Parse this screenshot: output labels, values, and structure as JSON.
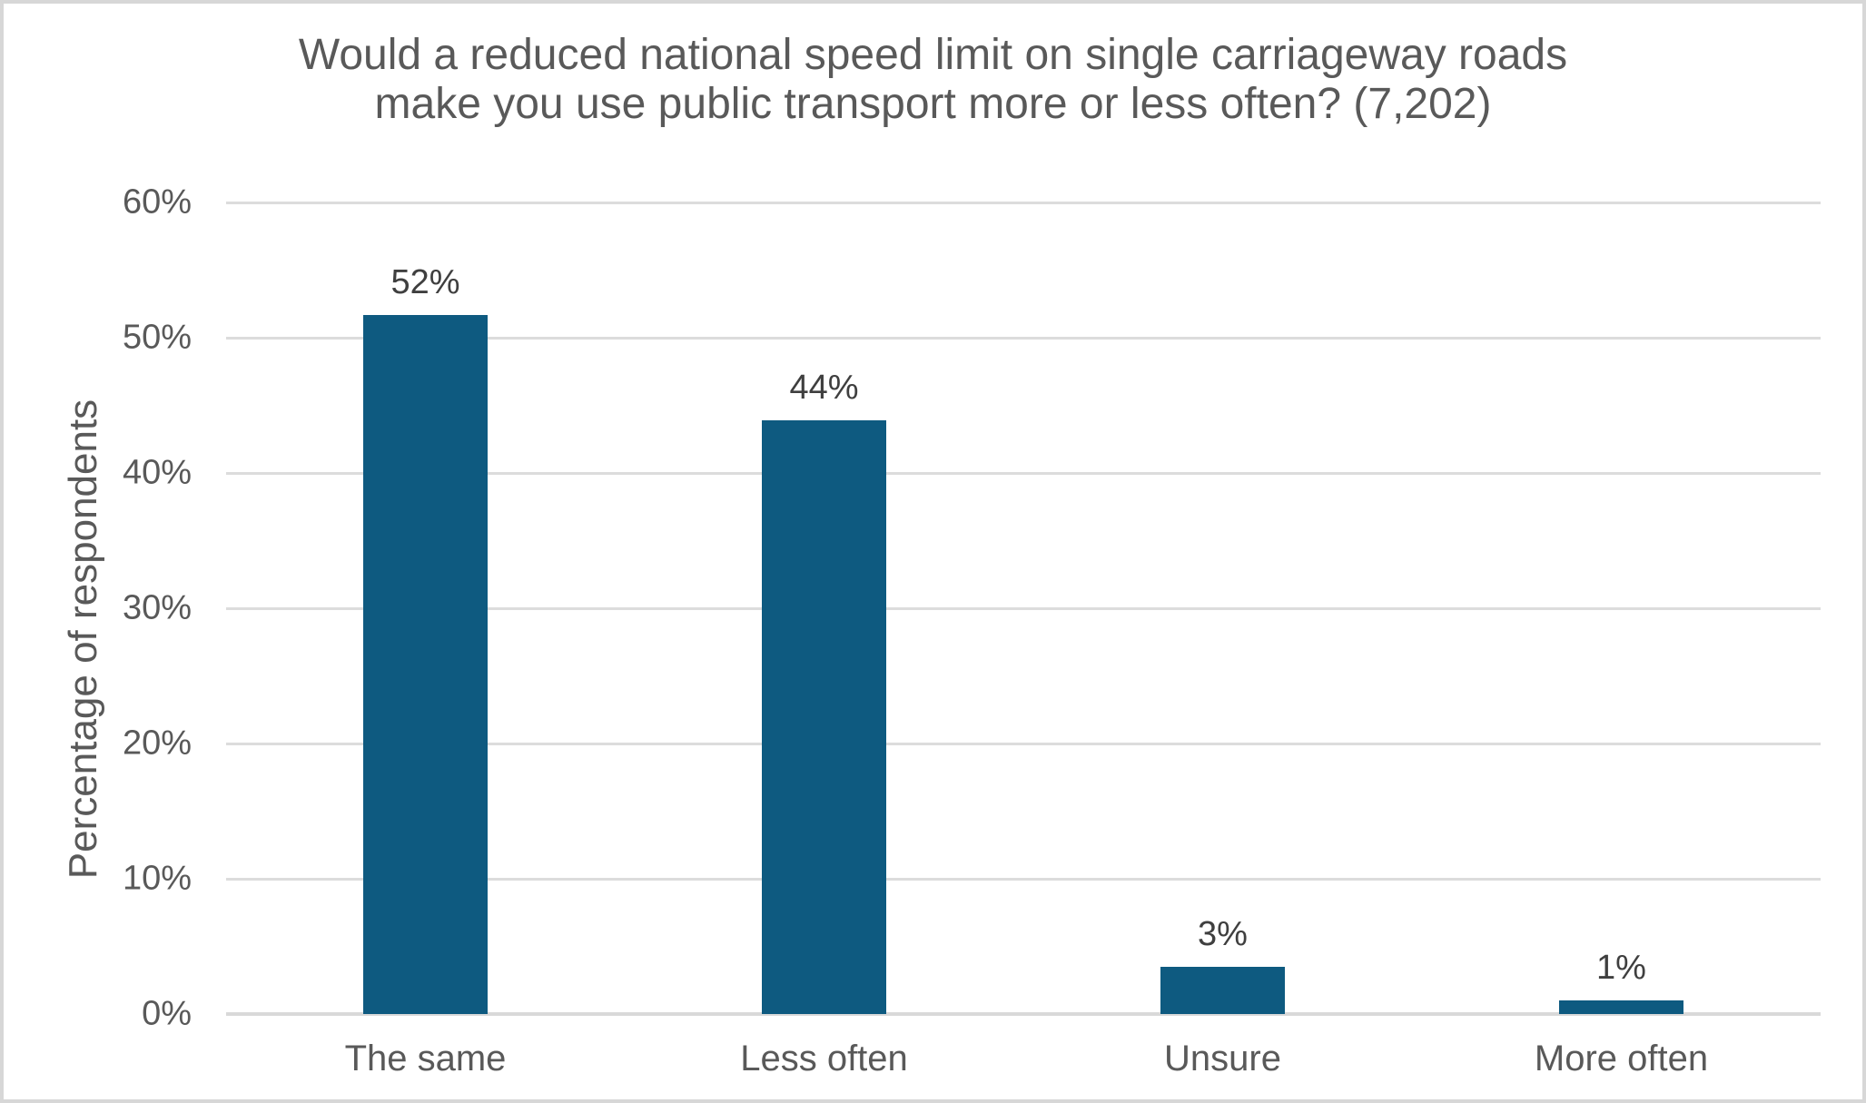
{
  "frame": {
    "background_color": "#ffffff",
    "border_color": "#d7d7d7"
  },
  "chart_data": {
    "type": "bar",
    "title": "Would a reduced national speed limit on single carriageway roads make you use public transport more or less often? (7,202)",
    "title_lines": [
      "Would a reduced national speed limit on single carriageway roads",
      "make you use public transport more or less often? (7,202)"
    ],
    "xlabel": "",
    "ylabel": "Percentage of respondents",
    "categories": [
      "The same",
      "Less often",
      "Unsure",
      "More often"
    ],
    "values": [
      52,
      44,
      3,
      1
    ],
    "value_labels": [
      "52%",
      "44%",
      "3%",
      "1%"
    ],
    "plotted_values": [
      51.7,
      43.9,
      3.5,
      1.0
    ],
    "ylim": [
      0,
      60
    ],
    "ytick_step": 10,
    "ytick_labels": [
      "0%",
      "10%",
      "20%",
      "30%",
      "40%",
      "50%",
      "60%"
    ],
    "grid": true,
    "legend": false,
    "colors": {
      "bar": "#0e5a80",
      "gridline": "#dcdcdc",
      "axis_line": "#d9d9d9",
      "title_text": "#595959",
      "axis_text": "#595959",
      "data_label_text": "#3f3f3f"
    }
  }
}
